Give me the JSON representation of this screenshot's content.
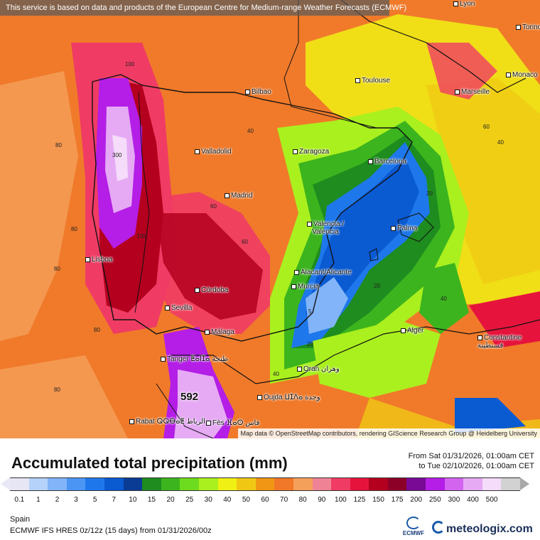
{
  "header": {
    "disclaimer": "This service is based on data and products of the European Centre for Medium-range Weather Forecasts (ECMWF)"
  },
  "map": {
    "attribution": "Map data © OpenStreetMap contributors, rendering GIScience Research Group @ Heidelberg University",
    "max_label": "592",
    "max_label_secondary": "300",
    "cities": [
      {
        "name": "Lyon"
      },
      {
        "name": "Torino"
      },
      {
        "name": "Monaco"
      },
      {
        "name": "Bilbao"
      },
      {
        "name": "Toulouse"
      },
      {
        "name": "Marseille"
      },
      {
        "name": "Valladolid"
      },
      {
        "name": "Zaragoza"
      },
      {
        "name": "Barcelona"
      },
      {
        "name": "Madrid"
      },
      {
        "name": "Valencia / València"
      },
      {
        "name": "Palma"
      },
      {
        "name": "Lisboa"
      },
      {
        "name": "Alacant/Alicante"
      },
      {
        "name": "Murcia"
      },
      {
        "name": "Córdoba"
      },
      {
        "name": "Sevilla"
      },
      {
        "name": "Málaga"
      },
      {
        "name": "Alger"
      },
      {
        "name": "Constantine قسنطينة"
      },
      {
        "name": "Tanger ⵟⴰⵏⵊⴰ طنجة"
      },
      {
        "name": "Oran وهران"
      },
      {
        "name": "Oujda ⵡⵊⴷⴰ وجدة"
      },
      {
        "name": "Rabat ⵕⵕⴱⴰⵟ الرباط"
      },
      {
        "name": "Fès ⴼⴰⵙ فاس"
      }
    ],
    "contour_labels": [
      "100",
      "80",
      "60",
      "40",
      "20",
      "5"
    ]
  },
  "legend": {
    "title": "Accumulated total precipitation (mm)",
    "period_from": "From Sat 01/31/2026, 01:00am CET",
    "period_to": "to Tue 02/10/2026, 01:00am CET",
    "ticks": [
      "0.1",
      "1",
      "2",
      "3",
      "5",
      "7",
      "10",
      "15",
      "20",
      "25",
      "30",
      "40",
      "50",
      "60",
      "70",
      "80",
      "90",
      "100",
      "125",
      "150",
      "175",
      "200",
      "250",
      "300",
      "400",
      "500"
    ],
    "colors": [
      "#e6e6f5",
      "#b4d2fa",
      "#82b4fa",
      "#4b96f5",
      "#1e78eb",
      "#0a5ad2",
      "#0a3c96",
      "#1e8c1e",
      "#3cb41e",
      "#6edc1e",
      "#aaf01e",
      "#f0f014",
      "#f0c814",
      "#f09614",
      "#f07828",
      "#f5a05a",
      "#f08296",
      "#f03c64",
      "#e6143c",
      "#b4001e",
      "#8c0028",
      "#780a96",
      "#b41ee6",
      "#d264f0",
      "#e6aaf5",
      "#f5dcfa",
      "#d2d2d2"
    ],
    "region": "Spain",
    "model": "ECMWF IFS HRES 0z/12z (15 days) from 01/31/2026/00z"
  },
  "logos": {
    "ecmwf": "ECMWF",
    "meteologix": "meteologix.com"
  }
}
